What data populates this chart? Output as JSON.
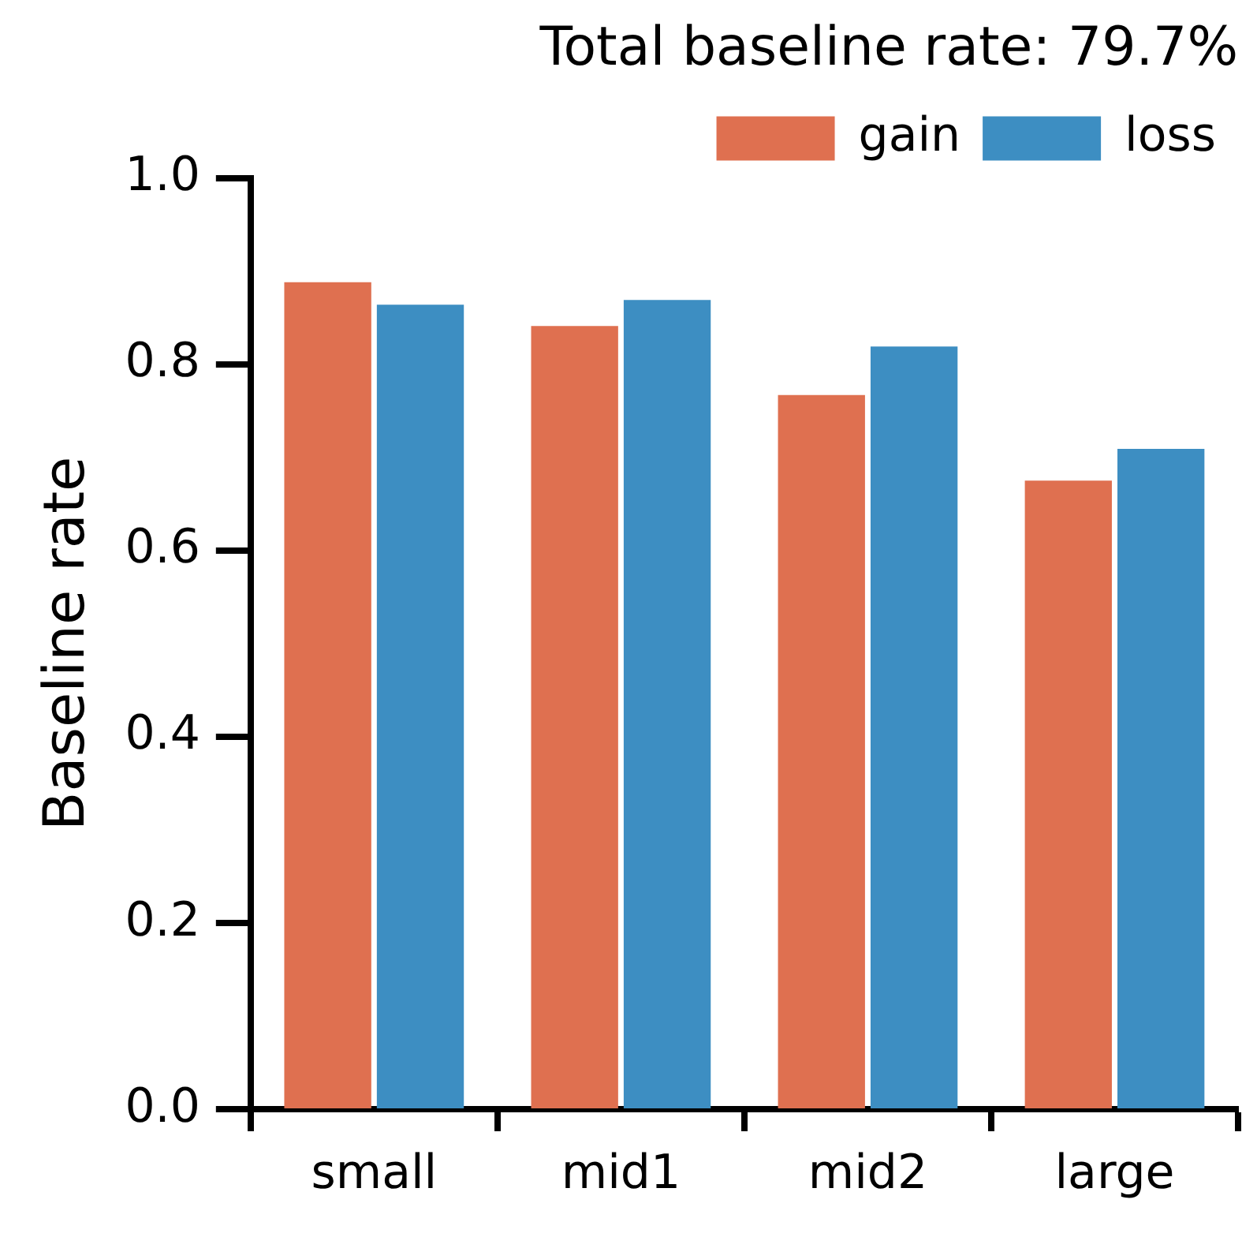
{
  "chart_data": {
    "type": "bar",
    "title": "Total baseline rate: 79.7%",
    "ylabel": "Baseline rate",
    "categories": [
      "small",
      "mid1",
      "mid2",
      "large"
    ],
    "series": [
      {
        "name": "gain",
        "color": "#df7050",
        "values": [
          0.888,
          0.841,
          0.767,
          0.675
        ]
      },
      {
        "name": "loss",
        "color": "#3d8ec2",
        "values": [
          0.864,
          0.869,
          0.819,
          0.709
        ]
      }
    ],
    "ylim": [
      0,
      1
    ],
    "yticks": [
      {
        "value": 0,
        "label": "0.0"
      },
      {
        "value": 0.2,
        "label": "0.2"
      },
      {
        "value": 0.4,
        "label": "0.4"
      },
      {
        "value": 0.6,
        "label": "0.6"
      },
      {
        "value": 0.8,
        "label": "0.8"
      },
      {
        "value": 1,
        "label": "1.0"
      }
    ],
    "grid": false,
    "legend": "top right"
  }
}
